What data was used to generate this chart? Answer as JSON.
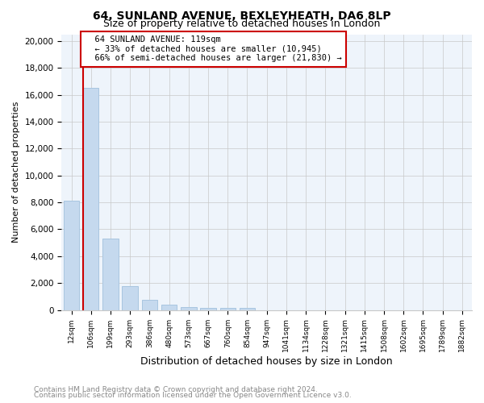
{
  "title1": "64, SUNLAND AVENUE, BEXLEYHEATH, DA6 8LP",
  "title2": "Size of property relative to detached houses in London",
  "xlabel": "Distribution of detached houses by size in London",
  "ylabel": "Number of detached properties",
  "footnote1": "Contains HM Land Registry data © Crown copyright and database right 2024.",
  "footnote2": "Contains public sector information licensed under the Open Government Licence v3.0.",
  "annotation_line1": "64 SUNLAND AVENUE: 119sqm",
  "annotation_line2": "← 33% of detached houses are smaller (10,945)",
  "annotation_line3": "66% of semi-detached houses are larger (21,830) →",
  "categories": [
    "12sqm",
    "106sqm",
    "199sqm",
    "293sqm",
    "386sqm",
    "480sqm",
    "573sqm",
    "667sqm",
    "760sqm",
    "854sqm",
    "947sqm",
    "1041sqm",
    "1134sqm",
    "1228sqm",
    "1321sqm",
    "1415sqm",
    "1508sqm",
    "1602sqm",
    "1695sqm",
    "1789sqm",
    "1882sqm"
  ],
  "values": [
    8100,
    16500,
    5300,
    1800,
    750,
    380,
    230,
    175,
    130,
    165,
    0,
    0,
    0,
    0,
    0,
    0,
    0,
    0,
    0,
    0,
    0
  ],
  "bar_color": "#c5d9ee",
  "bar_edgecolor": "#a8c5e0",
  "plot_bg_color": "#eef4fb",
  "annotation_box_color": "#ffffff",
  "annotation_border_color": "#cc0000",
  "grid_color": "#c8c8c8",
  "background_color": "#ffffff",
  "red_line_bar_index": 1,
  "ylim": [
    0,
    20500
  ],
  "yticks": [
    0,
    2000,
    4000,
    6000,
    8000,
    10000,
    12000,
    14000,
    16000,
    18000,
    20000
  ],
  "footnote_color": "#888888",
  "title1_fontsize": 10,
  "title2_fontsize": 9
}
